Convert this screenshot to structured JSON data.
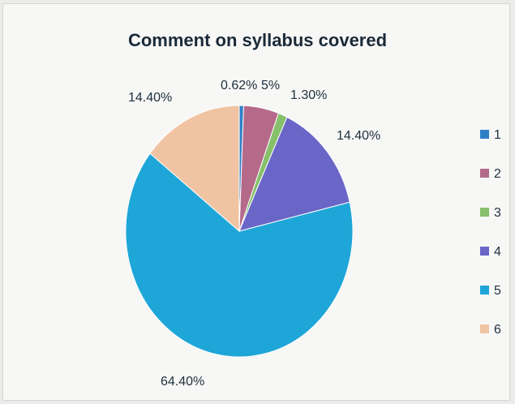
{
  "chart_data": {
    "type": "pie",
    "title": "Comment on syllabus covered",
    "categories": [
      "1",
      "2",
      "3",
      "4",
      "5",
      "6"
    ],
    "values": [
      0.62,
      5,
      1.3,
      14.4,
      64.4,
      14.4
    ],
    "data_labels": [
      "0.62%",
      "5%",
      "1.30%",
      "14.40%",
      "64.40%",
      "14.40%"
    ],
    "colors": [
      "#2f7fc8",
      "#b56a8a",
      "#86c06a",
      "#6a66c8",
      "#1fa6d8",
      "#f0c4a2"
    ],
    "legend_position": "right"
  }
}
